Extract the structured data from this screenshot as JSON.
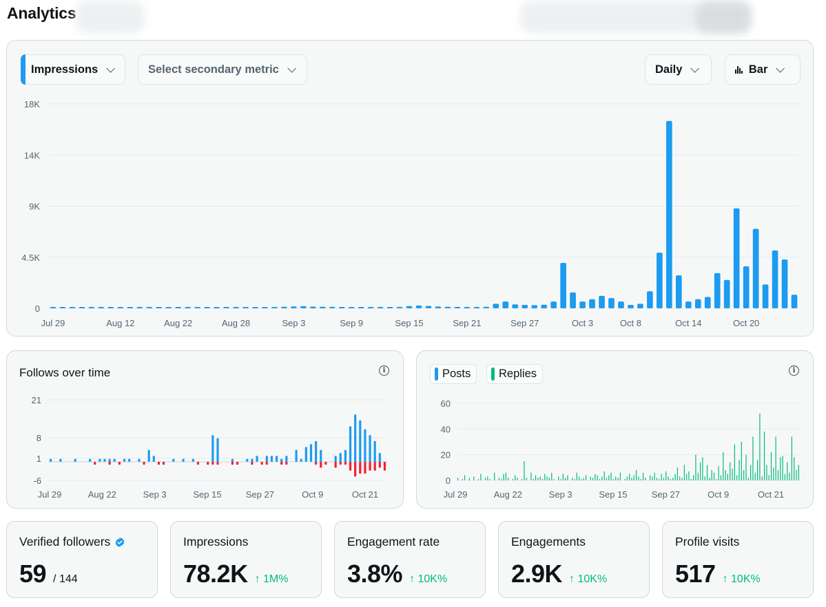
{
  "page": {
    "title": "Analytics"
  },
  "colors": {
    "blue": "#1d9bf0",
    "green": "#00ba7c",
    "red": "#f4212e",
    "grid": "#e5eaec",
    "axis_text": "#536471"
  },
  "main_chart": {
    "controls": {
      "primary_metric": "Impressions",
      "secondary_metric_placeholder": "Select secondary metric",
      "interval": "Daily",
      "chart_type": "Bar"
    }
  },
  "follows_card": {
    "title": "Follows over time"
  },
  "posts_card": {
    "legend": {
      "posts": "Posts",
      "replies": "Replies"
    }
  },
  "stats": [
    {
      "label": "Verified followers",
      "value": "59",
      "total": "/ 144",
      "verified_icon": "verified-badge-icon"
    },
    {
      "label": "Impressions",
      "value": "78.2K",
      "delta": "↑ 1M%"
    },
    {
      "label": "Engagement rate",
      "value": "3.8%",
      "delta": "↑ 10K%"
    },
    {
      "label": "Engagements",
      "value": "2.9K",
      "delta": "↑ 10K%"
    },
    {
      "label": "Profile visits",
      "value": "517",
      "delta": "↑ 10K%"
    }
  ],
  "chart_data": [
    {
      "id": "impressions",
      "type": "bar",
      "title": "Impressions",
      "yticks": [
        "0",
        "4.5K",
        "9K",
        "14K",
        "18K"
      ],
      "ylim": [
        0,
        18000
      ],
      "xticks": [
        {
          "label": "Jul 29",
          "index": 0
        },
        {
          "label": "Aug 12",
          "index": 7
        },
        {
          "label": "Aug 22",
          "index": 13
        },
        {
          "label": "Aug 28",
          "index": 19
        },
        {
          "label": "Sep 3",
          "index": 25
        },
        {
          "label": "Sep 9",
          "index": 31
        },
        {
          "label": "Sep 15",
          "index": 37
        },
        {
          "label": "Sep 21",
          "index": 43
        },
        {
          "label": "Sep 27",
          "index": 49
        },
        {
          "label": "Oct 3",
          "index": 55
        },
        {
          "label": "Oct 8",
          "index": 60
        },
        {
          "label": "Oct 14",
          "index": 66
        },
        {
          "label": "Oct 20",
          "index": 72
        }
      ],
      "values": [
        15,
        15,
        15,
        15,
        15,
        15,
        15,
        15,
        30,
        30,
        40,
        50,
        60,
        60,
        70,
        80,
        70,
        80,
        60,
        70,
        80,
        90,
        100,
        110,
        140,
        160,
        190,
        150,
        140,
        130,
        120,
        110,
        100,
        90,
        100,
        110,
        130,
        200,
        250,
        210,
        160,
        140,
        130,
        110,
        120,
        140,
        400,
        600,
        350,
        300,
        280,
        320,
        600,
        4000,
        1400,
        600,
        800,
        1100,
        900,
        600,
        300,
        400,
        1500,
        4900,
        16500,
        2900,
        600,
        800,
        1000,
        3100,
        2500,
        8800,
        3700,
        7000,
        2100,
        5100,
        4300,
        1200
      ]
    },
    {
      "id": "follows",
      "type": "bar",
      "title": "Follows over time",
      "yticks": [
        "21",
        "8",
        "1",
        "-6"
      ],
      "xticks": [
        "Jul 29",
        "Aug 22",
        "Sep 3",
        "Sep 15",
        "Sep 27",
        "Oct 9",
        "Oct 21"
      ],
      "follows": [
        1,
        0,
        1,
        0,
        0,
        1,
        0,
        0,
        1,
        0,
        1,
        1,
        1,
        1,
        0,
        1,
        1,
        0,
        1,
        0,
        4,
        2,
        0,
        0,
        0,
        1,
        0,
        1,
        0,
        1,
        0,
        0,
        0,
        9,
        8,
        0,
        0,
        1,
        0,
        0,
        1,
        1,
        2,
        0,
        2,
        2,
        2,
        1,
        2,
        0,
        4,
        1,
        5,
        6,
        7,
        4,
        0,
        0,
        2,
        3,
        4,
        12,
        16,
        14,
        11,
        9,
        7,
        3,
        0
      ],
      "unfollows": [
        0,
        0,
        0,
        0,
        0,
        0,
        0,
        0,
        0,
        -1,
        0,
        0,
        -1,
        0,
        -1,
        0,
        0,
        0,
        0,
        -1,
        0,
        0,
        -1,
        -1,
        0,
        0,
        0,
        0,
        0,
        0,
        -1,
        0,
        -1,
        -1,
        -1,
        0,
        0,
        -1,
        -1,
        0,
        0,
        -1,
        0,
        -1,
        -1,
        0,
        0,
        -1,
        -1,
        0,
        0,
        0,
        0,
        0,
        -1,
        -2,
        -1,
        0,
        -2,
        -1,
        -1,
        -3,
        -5,
        -4,
        -4,
        -3,
        -3,
        -2,
        -3
      ]
    },
    {
      "id": "posts_replies",
      "type": "bar",
      "legend": [
        "Posts",
        "Replies"
      ],
      "yticks": [
        "0",
        "20",
        "40",
        "60"
      ],
      "ylim": [
        0,
        60
      ],
      "xticks": [
        "Jul 29",
        "Aug 22",
        "Sep 3",
        "Sep 15",
        "Sep 27",
        "Oct 9",
        "Oct 21"
      ],
      "replies": [
        2,
        0,
        1,
        4,
        0,
        2,
        0,
        3,
        0,
        1,
        5,
        0,
        2,
        3,
        1,
        0,
        6,
        0,
        2,
        1,
        5,
        6,
        2,
        0,
        1,
        4,
        2,
        0,
        1,
        15,
        2,
        0,
        6,
        1,
        4,
        2,
        3,
        1,
        5,
        3,
        2,
        6,
        1,
        0,
        3,
        1,
        5,
        2,
        4,
        0,
        2,
        1,
        6,
        3,
        1,
        2,
        4,
        0,
        3,
        2,
        5,
        4,
        1,
        3,
        7,
        2,
        4,
        6,
        1,
        3,
        2,
        6,
        0,
        1,
        3,
        5,
        2,
        4,
        8,
        3,
        1,
        6,
        2,
        0,
        4,
        3,
        6,
        2,
        1,
        5,
        2,
        7,
        3,
        1,
        2,
        5,
        10,
        3,
        2,
        12,
        5,
        7,
        1,
        4,
        20,
        6,
        14,
        18,
        3,
        12,
        2,
        8,
        6,
        1,
        11,
        4,
        22,
        8,
        5,
        14,
        9,
        28,
        4,
        16,
        30,
        8,
        20,
        2,
        12,
        34,
        6,
        16,
        52,
        3,
        38,
        12,
        4,
        22,
        10,
        34,
        8,
        18,
        19,
        5,
        14,
        6,
        34,
        18,
        8,
        12
      ]
    }
  ]
}
